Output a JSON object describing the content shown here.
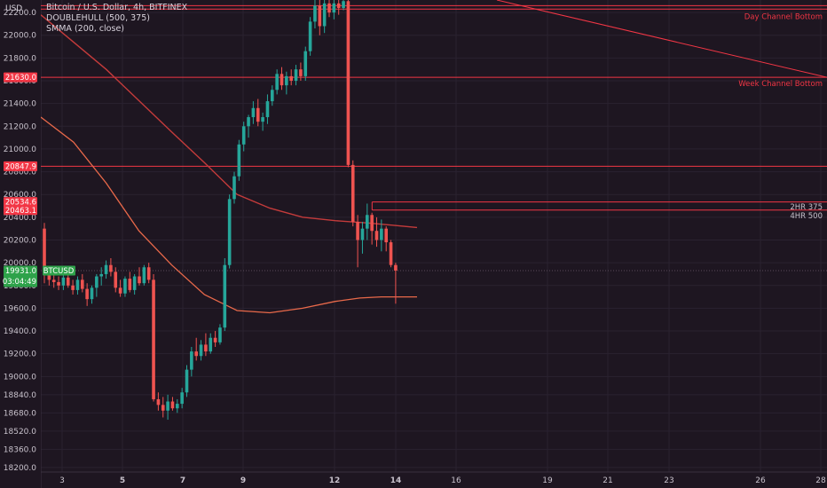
{
  "colors": {
    "background": "#1e1621",
    "up": "#26a69a",
    "down": "#ef5350",
    "level_line": "#f23645",
    "smma": "#c43b3b",
    "doublehull": "#e9694a",
    "grid": "#2a2230",
    "current_price": "#2ea24a"
  },
  "header": {
    "currency": "USD",
    "title": "Bitcoin / U.S. Dollar, 4h, BITFINEX",
    "indicator_1": "DOUBLEHULL (500, 375)",
    "indicator_2": "SMMA (200, close)"
  },
  "chart_data": {
    "type": "candlestick",
    "symbol": "BTCUSD",
    "timeframe": "4h",
    "exchange": "BITFINEX",
    "ylim": [
      18160,
      22310
    ],
    "y_ticks": [
      22200.0,
      22000.0,
      21800.0,
      21600.0,
      21400.0,
      21200.0,
      21000.0,
      20800.0,
      20600.0,
      20400.0,
      20200.0,
      20000.0,
      19800.0,
      19600.0,
      19400.0,
      19200.0,
      19000.0,
      18840.0,
      18680.0,
      18520.0,
      18360.0,
      18200.0
    ],
    "x_ticks": [
      "3",
      "5",
      "7",
      "9",
      "12",
      "14",
      "16",
      "19",
      "21",
      "23",
      "26",
      "28"
    ],
    "x_tick_bold": [
      "5",
      "7",
      "9",
      "12",
      "14"
    ],
    "price_labels": [
      {
        "value": "21630.0",
        "kind": "level"
      },
      {
        "value": "20847.9",
        "kind": "level"
      },
      {
        "value": "20534.6",
        "kind": "level"
      },
      {
        "value": "20463.1",
        "kind": "level"
      },
      {
        "value": "19931.0",
        "kind": "current",
        "ticker": "BTCUSD",
        "countdown": "03:04:49"
      }
    ],
    "levels": [
      {
        "price": 21630.0,
        "label": "Week Channel Bottom"
      },
      {
        "price": 20847.9,
        "label": ""
      },
      {
        "price": 22260.0,
        "label": "Day Channel Bottom"
      }
    ],
    "hull_labels": [
      "2HR 375",
      "4HR 500"
    ],
    "candles": [
      {
        "o": 20300,
        "h": 20350,
        "l": 19820,
        "c": 19900
      },
      {
        "o": 19900,
        "h": 19960,
        "l": 19800,
        "c": 19850
      },
      {
        "o": 19850,
        "h": 19920,
        "l": 19780,
        "c": 19830
      },
      {
        "o": 19830,
        "h": 19880,
        "l": 19760,
        "c": 19800
      },
      {
        "o": 19800,
        "h": 19900,
        "l": 19760,
        "c": 19870
      },
      {
        "o": 19870,
        "h": 19920,
        "l": 19780,
        "c": 19800
      },
      {
        "o": 19800,
        "h": 19850,
        "l": 19720,
        "c": 19760
      },
      {
        "o": 19760,
        "h": 19880,
        "l": 19720,
        "c": 19850
      },
      {
        "o": 19850,
        "h": 19900,
        "l": 19740,
        "c": 19770
      },
      {
        "o": 19770,
        "h": 19820,
        "l": 19620,
        "c": 19680
      },
      {
        "o": 19680,
        "h": 19800,
        "l": 19640,
        "c": 19780
      },
      {
        "o": 19780,
        "h": 19900,
        "l": 19700,
        "c": 19880
      },
      {
        "o": 19880,
        "h": 19960,
        "l": 19800,
        "c": 19900
      },
      {
        "o": 19900,
        "h": 20020,
        "l": 19860,
        "c": 19980
      },
      {
        "o": 19980,
        "h": 20040,
        "l": 19880,
        "c": 19920
      },
      {
        "o": 19920,
        "h": 19960,
        "l": 19740,
        "c": 19780
      },
      {
        "o": 19780,
        "h": 19850,
        "l": 19700,
        "c": 19730
      },
      {
        "o": 19730,
        "h": 19880,
        "l": 19700,
        "c": 19860
      },
      {
        "o": 19860,
        "h": 19920,
        "l": 19740,
        "c": 19760
      },
      {
        "o": 19760,
        "h": 19900,
        "l": 19720,
        "c": 19880
      },
      {
        "o": 19880,
        "h": 19960,
        "l": 19800,
        "c": 19820
      },
      {
        "o": 19820,
        "h": 19980,
        "l": 19800,
        "c": 19960
      },
      {
        "o": 19960,
        "h": 20000,
        "l": 19820,
        "c": 19850
      },
      {
        "o": 19850,
        "h": 19900,
        "l": 18780,
        "c": 18800
      },
      {
        "o": 18800,
        "h": 18860,
        "l": 18700,
        "c": 18750
      },
      {
        "o": 18750,
        "h": 18820,
        "l": 18640,
        "c": 18700
      },
      {
        "o": 18700,
        "h": 18840,
        "l": 18620,
        "c": 18780
      },
      {
        "o": 18780,
        "h": 18820,
        "l": 18700,
        "c": 18720
      },
      {
        "o": 18720,
        "h": 18800,
        "l": 18680,
        "c": 18760
      },
      {
        "o": 18760,
        "h": 18900,
        "l": 18720,
        "c": 18860
      },
      {
        "o": 18860,
        "h": 19100,
        "l": 18820,
        "c": 19060
      },
      {
        "o": 19060,
        "h": 19260,
        "l": 19000,
        "c": 19220
      },
      {
        "o": 19220,
        "h": 19340,
        "l": 19140,
        "c": 19180
      },
      {
        "o": 19180,
        "h": 19320,
        "l": 19140,
        "c": 19280
      },
      {
        "o": 19280,
        "h": 19380,
        "l": 19180,
        "c": 19220
      },
      {
        "o": 19220,
        "h": 19380,
        "l": 19200,
        "c": 19340
      },
      {
        "o": 19340,
        "h": 19400,
        "l": 19260,
        "c": 19300
      },
      {
        "o": 19300,
        "h": 19460,
        "l": 19280,
        "c": 19430
      },
      {
        "o": 19430,
        "h": 20040,
        "l": 19400,
        "c": 19980
      },
      {
        "o": 19980,
        "h": 20600,
        "l": 19950,
        "c": 20560
      },
      {
        "o": 20560,
        "h": 20800,
        "l": 20520,
        "c": 20760
      },
      {
        "o": 20760,
        "h": 21080,
        "l": 20720,
        "c": 21040
      },
      {
        "o": 21040,
        "h": 21240,
        "l": 20980,
        "c": 21200
      },
      {
        "o": 21200,
        "h": 21300,
        "l": 21100,
        "c": 21280
      },
      {
        "o": 21280,
        "h": 21420,
        "l": 21220,
        "c": 21360
      },
      {
        "o": 21360,
        "h": 21440,
        "l": 21200,
        "c": 21240
      },
      {
        "o": 21240,
        "h": 21320,
        "l": 21160,
        "c": 21280
      },
      {
        "o": 21280,
        "h": 21480,
        "l": 21220,
        "c": 21420
      },
      {
        "o": 21420,
        "h": 21560,
        "l": 21380,
        "c": 21520
      },
      {
        "o": 21520,
        "h": 21700,
        "l": 21480,
        "c": 21660
      },
      {
        "o": 21660,
        "h": 21720,
        "l": 21520,
        "c": 21560
      },
      {
        "o": 21560,
        "h": 21680,
        "l": 21480,
        "c": 21640
      },
      {
        "o": 21640,
        "h": 21700,
        "l": 21560,
        "c": 21600
      },
      {
        "o": 21600,
        "h": 21740,
        "l": 21560,
        "c": 21700
      },
      {
        "o": 21700,
        "h": 21760,
        "l": 21600,
        "c": 21640
      },
      {
        "o": 21640,
        "h": 21900,
        "l": 21600,
        "c": 21860
      },
      {
        "o": 21860,
        "h": 22160,
        "l": 21820,
        "c": 22120
      },
      {
        "o": 22120,
        "h": 22310,
        "l": 22060,
        "c": 22260
      },
      {
        "o": 22260,
        "h": 22310,
        "l": 22000,
        "c": 22080
      },
      {
        "o": 22080,
        "h": 22310,
        "l": 22020,
        "c": 22280
      },
      {
        "o": 22280,
        "h": 22310,
        "l": 22160,
        "c": 22200
      },
      {
        "o": 22200,
        "h": 22310,
        "l": 22140,
        "c": 22280
      },
      {
        "o": 22280,
        "h": 22310,
        "l": 22180,
        "c": 22240
      },
      {
        "o": 22240,
        "h": 22310,
        "l": 22220,
        "c": 22300
      },
      {
        "o": 22300,
        "h": 22310,
        "l": 20840,
        "c": 20860
      },
      {
        "o": 20860,
        "h": 20900,
        "l": 20320,
        "c": 20360
      },
      {
        "o": 20360,
        "h": 20420,
        "l": 19960,
        "c": 20200
      },
      {
        "o": 20200,
        "h": 20360,
        "l": 20080,
        "c": 20300
      },
      {
        "o": 20300,
        "h": 20520,
        "l": 20200,
        "c": 20420
      },
      {
        "o": 20420,
        "h": 20440,
        "l": 20160,
        "c": 20280
      },
      {
        "o": 20280,
        "h": 20400,
        "l": 20140,
        "c": 20200
      },
      {
        "o": 20200,
        "h": 20380,
        "l": 20100,
        "c": 20300
      },
      {
        "o": 20300,
        "h": 20320,
        "l": 20100,
        "c": 20180
      },
      {
        "o": 20180,
        "h": 20200,
        "l": 19960,
        "c": 19980
      },
      {
        "o": 19980,
        "h": 20000,
        "l": 19640,
        "c": 19931
      }
    ],
    "smma": [
      [
        0,
        22180
      ],
      [
        40,
        21700
      ],
      [
        80,
        21150
      ],
      [
        100,
        20880
      ],
      [
        120,
        20600
      ],
      [
        140,
        20480
      ],
      [
        160,
        20400
      ],
      [
        180,
        20370
      ],
      [
        200,
        20350
      ],
      [
        215,
        20330
      ],
      [
        230,
        20310
      ]
    ],
    "doublehull": [
      [
        0,
        21280
      ],
      [
        20,
        21060
      ],
      [
        40,
        20700
      ],
      [
        60,
        20280
      ],
      [
        80,
        19980
      ],
      [
        100,
        19720
      ],
      [
        120,
        19580
      ],
      [
        140,
        19560
      ],
      [
        160,
        19600
      ],
      [
        180,
        19660
      ],
      [
        195,
        19690
      ],
      [
        208,
        19700
      ],
      [
        230,
        19700
      ]
    ],
    "level_upper_line": [
      [
        214,
        22280
      ],
      [
        236,
        22260
      ]
    ],
    "hull_box": {
      "x_start": 214,
      "top": 20534.6,
      "bottom": 20463.1
    }
  }
}
